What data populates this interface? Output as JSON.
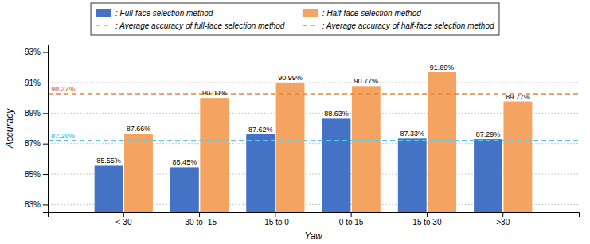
{
  "chart_data": {
    "type": "bar",
    "categories": [
      "<-30",
      "-30 to -15",
      "-15 to 0",
      "0 to 15",
      "15 to 30",
      ">30"
    ],
    "xlabel": "Yaw",
    "ylabel": "Accuracy",
    "ylim": [
      82.5,
      93.5
    ],
    "yticks": [
      {
        "value": 83,
        "label": "83%"
      },
      {
        "value": 85,
        "label": "85%"
      },
      {
        "value": 87,
        "label": "87%"
      },
      {
        "value": 89,
        "label": "89%"
      },
      {
        "value": 91,
        "label": "91%"
      },
      {
        "value": 93,
        "label": "93%"
      }
    ],
    "grid": true,
    "legend": "top",
    "data_labels": true,
    "series": [
      {
        "name": ": Full-face selection method",
        "color": "#4472C4",
        "values": [
          85.55,
          85.45,
          87.62,
          88.63,
          87.33,
          87.29
        ],
        "value_labels": [
          "85.55%",
          "85.45%",
          "87.62%",
          "88.63%",
          "87.33%",
          "87.29%"
        ]
      },
      {
        "name": ": Half-face selection method",
        "color": "#F4A460",
        "values": [
          87.66,
          90.0,
          90.99,
          90.77,
          91.69,
          89.77
        ],
        "value_labels": [
          "87.66%",
          "90.00%",
          "90.99%",
          "90.77%",
          "91.69%",
          "89.77%"
        ]
      }
    ],
    "reference_lines": [
      {
        "name": ": Average accuracy of full-face selection method",
        "value": 87.2,
        "label": "87.20%",
        "color": "#5BC8E8",
        "line_style": "dashed"
      },
      {
        "name": ": Average accuracy of half-face selection method",
        "value": 90.27,
        "label": "90.27%",
        "color": "#E8873A",
        "line_style": "dashed"
      }
    ]
  }
}
